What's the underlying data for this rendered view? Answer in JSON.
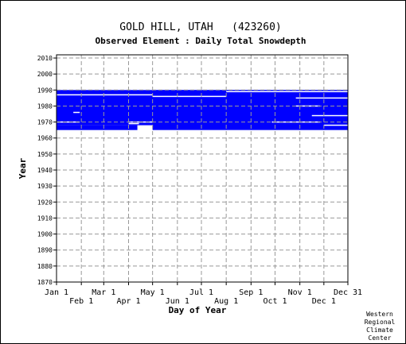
{
  "chart_data": {
    "type": "heatmap",
    "title": "GOLD HILL, UTAH   (423260)",
    "subtitle": "Observed Element : Daily Total Snowdepth",
    "xlabel": "Day of Year",
    "ylabel": "Year",
    "xlim": [
      1,
      365
    ],
    "ylim": [
      1870,
      2012
    ],
    "x_ticks_upper": [
      {
        "label": "Jan 1",
        "day": 1
      },
      {
        "label": "Mar 1",
        "day": 60
      },
      {
        "label": "May 1",
        "day": 121
      },
      {
        "label": "Jul 1",
        "day": 182
      },
      {
        "label": "Sep 1",
        "day": 244
      },
      {
        "label": "Nov 1",
        "day": 305
      },
      {
        "label": "Dec 31",
        "day": 365
      }
    ],
    "x_ticks_lower": [
      {
        "label": "Feb 1",
        "day": 32
      },
      {
        "label": "Apr 1",
        "day": 91
      },
      {
        "label": "Jun 1",
        "day": 152
      },
      {
        "label": "Aug 1",
        "day": 213
      },
      {
        "label": "Oct 1",
        "day": 274
      },
      {
        "label": "Dec 1",
        "day": 335
      }
    ],
    "y_ticks": [
      1870,
      1880,
      1890,
      1900,
      1910,
      1920,
      1930,
      1940,
      1950,
      1960,
      1970,
      1980,
      1990,
      2000,
      2010
    ],
    "grid": true,
    "series": [
      {
        "color": "#0000ff",
        "ranges": [
          {
            "y0": 1968,
            "y1": 1990,
            "x0": 1,
            "x1": 365
          },
          {
            "y0": 1965,
            "y1": 1968,
            "x0": 1,
            "x1": 102
          },
          {
            "y0": 1965,
            "y1": 1990,
            "x0": 121,
            "x1": 365
          }
        ]
      }
    ],
    "gaps": [
      {
        "year": 1987,
        "x0": 1,
        "x1": 121
      },
      {
        "year": 1986,
        "x0": 121,
        "x1": 213
      },
      {
        "year": 1989,
        "x0": 213,
        "x1": 365
      },
      {
        "year": 1985,
        "x0": 300,
        "x1": 365
      },
      {
        "year": 1980,
        "x0": 300,
        "x1": 330
      },
      {
        "year": 1976,
        "x0": 22,
        "x1": 30
      },
      {
        "year": 1974,
        "x0": 320,
        "x1": 365
      },
      {
        "year": 1970,
        "x0": 1,
        "x1": 30
      },
      {
        "year": 1970,
        "x0": 91,
        "x1": 121
      },
      {
        "year": 1969,
        "x0": 91,
        "x1": 104
      },
      {
        "year": 1970,
        "x0": 270,
        "x1": 330
      },
      {
        "year": 1968,
        "x0": 335,
        "x1": 365
      }
    ],
    "credit": [
      "Western",
      "Regional",
      "Climate",
      "Center"
    ]
  }
}
